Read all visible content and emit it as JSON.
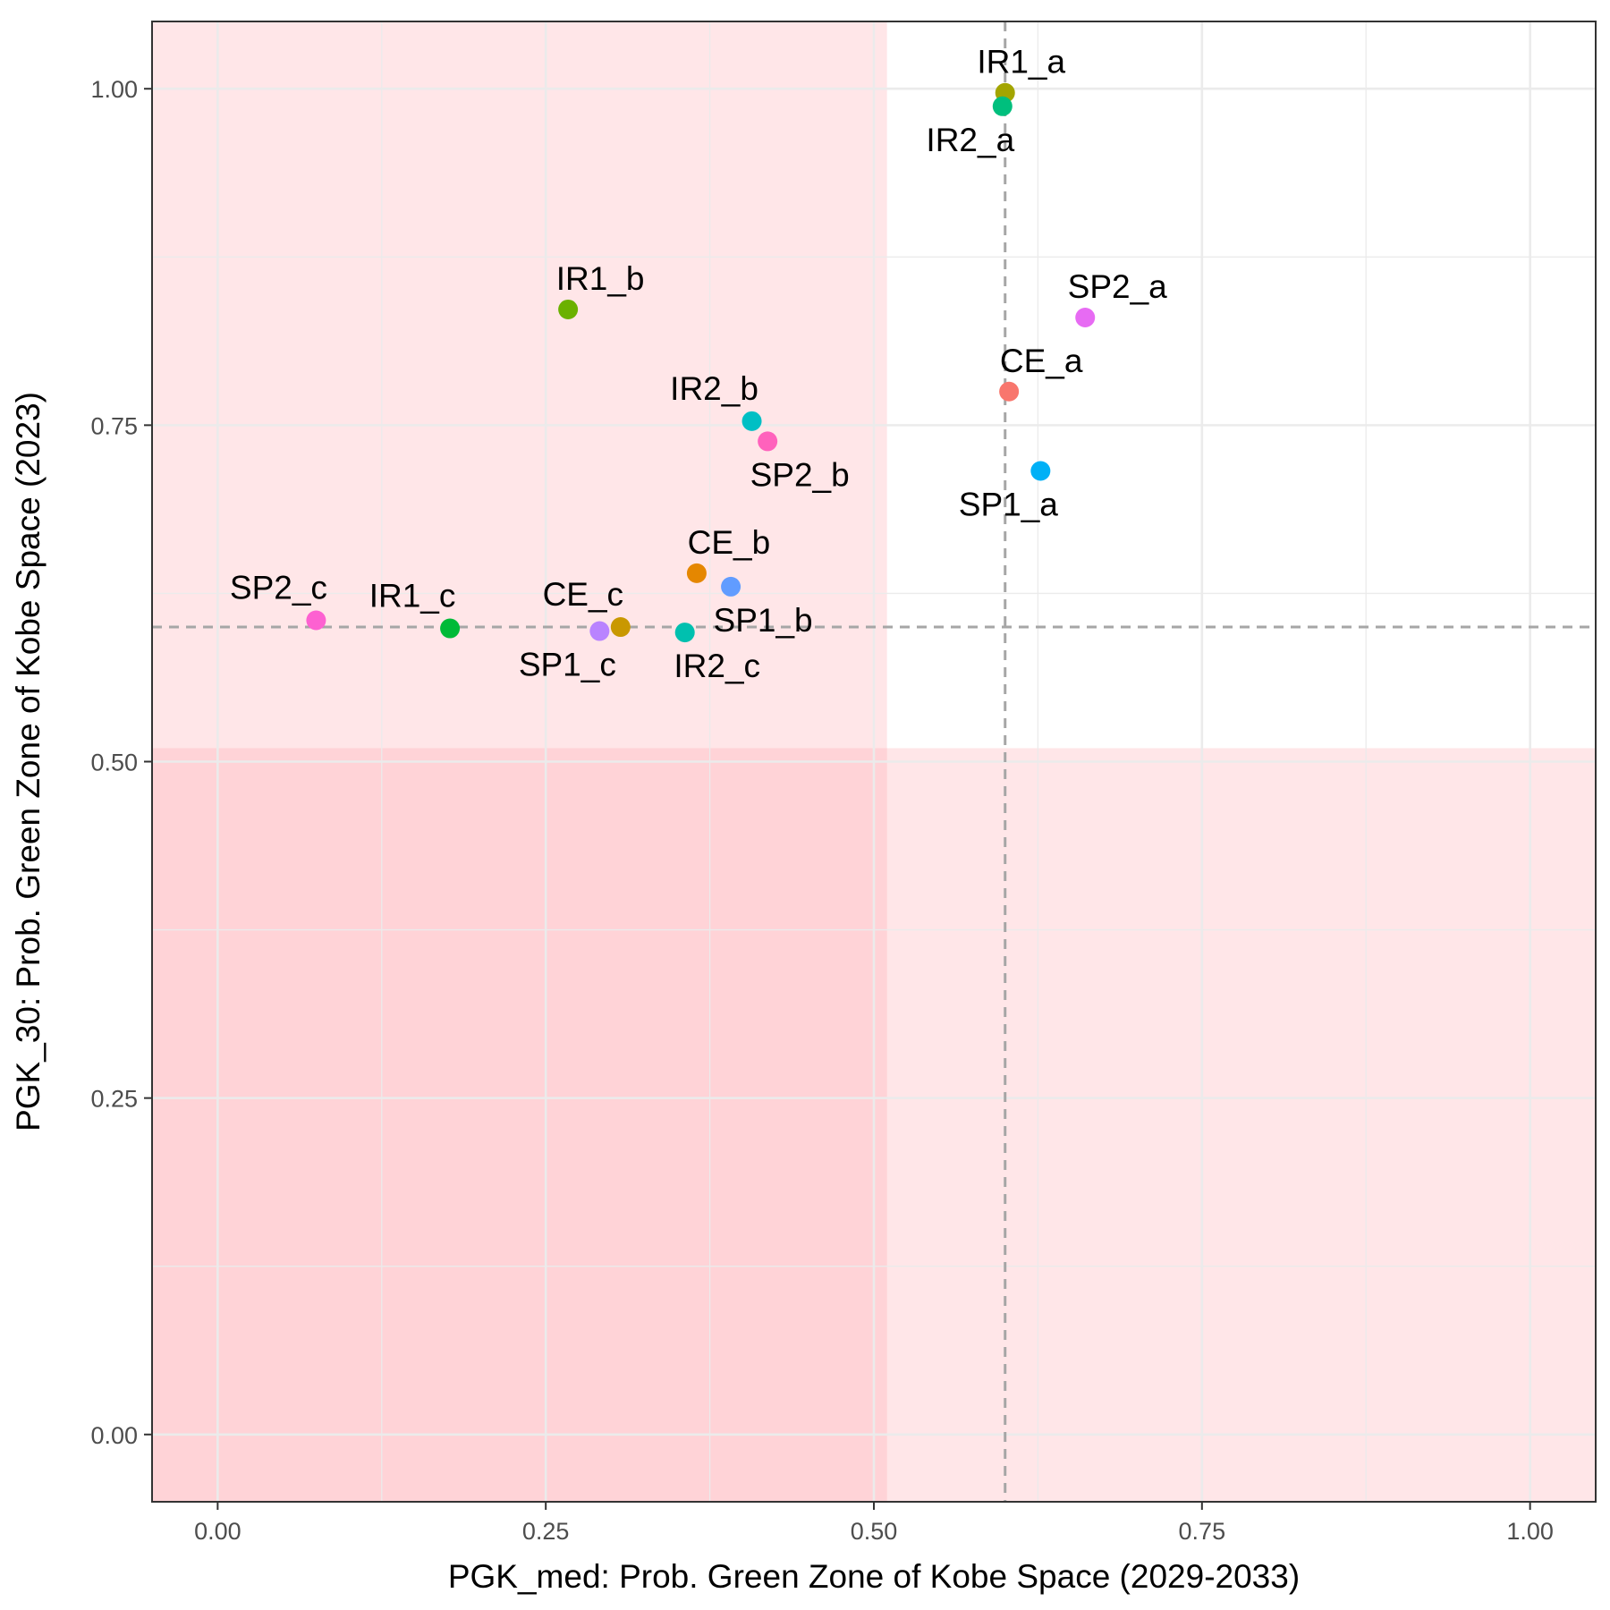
{
  "chart_data": {
    "type": "scatter",
    "xlabel": "PGK_med: Prob. Green Zone of Kobe Space (2029-2033)",
    "ylabel": "PGK_30: Prob. Green Zone of Kobe Space (2023)",
    "xlim": [
      -0.05,
      1.05
    ],
    "ylim": [
      -0.05,
      1.05
    ],
    "x_ticks": [
      0.0,
      0.25,
      0.5,
      0.75,
      1.0
    ],
    "y_ticks": [
      0.0,
      0.25,
      0.5,
      0.75,
      1.0
    ],
    "x_tick_labels": [
      "0.00",
      "0.25",
      "0.50",
      "0.75",
      "1.00"
    ],
    "y_tick_labels": [
      "0.00",
      "0.25",
      "0.50",
      "0.75",
      "1.00"
    ],
    "grid": true,
    "legend": "none",
    "reference_lines": {
      "x": 0.6,
      "y": 0.6
    },
    "shaded_regions": [
      {
        "name": "x-below-threshold",
        "x": [
          -0.05,
          0.51
        ],
        "y": [
          -0.05,
          1.05
        ],
        "color": "#ff9aa2",
        "opacity": 0.25
      },
      {
        "name": "y-below-threshold",
        "x": [
          -0.05,
          1.05
        ],
        "y": [
          -0.05,
          0.51
        ],
        "color": "#ff9aa2",
        "opacity": 0.25
      }
    ],
    "points": [
      {
        "label": "IR1_a",
        "x": 0.6,
        "y": 0.997,
        "color": "#a3a500",
        "label_pos": "above"
      },
      {
        "label": "IR2_a",
        "x": 0.598,
        "y": 0.987,
        "color": "#00bf7d",
        "label_pos": "below-left"
      },
      {
        "label": "SP2_a",
        "x": 0.661,
        "y": 0.83,
        "color": "#e76bf3",
        "label_pos": "above-right"
      },
      {
        "label": "CE_a",
        "x": 0.603,
        "y": 0.775,
        "color": "#f8766d",
        "label_pos": "above-right"
      },
      {
        "label": "SP1_a",
        "x": 0.627,
        "y": 0.716,
        "color": "#00b0f6",
        "label_pos": "below-left"
      },
      {
        "label": "IR1_b",
        "x": 0.267,
        "y": 0.836,
        "color": "#6bb100",
        "label_pos": "above-right"
      },
      {
        "label": "IR2_b",
        "x": 0.407,
        "y": 0.753,
        "color": "#00bfc4",
        "label_pos": "above-left"
      },
      {
        "label": "SP2_b",
        "x": 0.419,
        "y": 0.738,
        "color": "#ff62bc",
        "label_pos": "below-right"
      },
      {
        "label": "CE_b",
        "x": 0.365,
        "y": 0.64,
        "color": "#e58700",
        "label_pos": "above-right"
      },
      {
        "label": "SP1_b",
        "x": 0.391,
        "y": 0.63,
        "color": "#619cff",
        "label_pos": "below-right"
      },
      {
        "label": "SP2_c",
        "x": 0.075,
        "y": 0.605,
        "color": "#fd61d1",
        "label_pos": "above-left"
      },
      {
        "label": "IR1_c",
        "x": 0.177,
        "y": 0.599,
        "color": "#00ba38",
        "label_pos": "above-left"
      },
      {
        "label": "CE_c",
        "x": 0.307,
        "y": 0.6,
        "color": "#c99800",
        "label_pos": "above-left"
      },
      {
        "label": "SP1_c",
        "x": 0.291,
        "y": 0.597,
        "color": "#b983ff",
        "label_pos": "below-left"
      },
      {
        "label": "IR2_c",
        "x": 0.356,
        "y": 0.596,
        "color": "#00c0af",
        "label_pos": "below-right"
      }
    ]
  }
}
